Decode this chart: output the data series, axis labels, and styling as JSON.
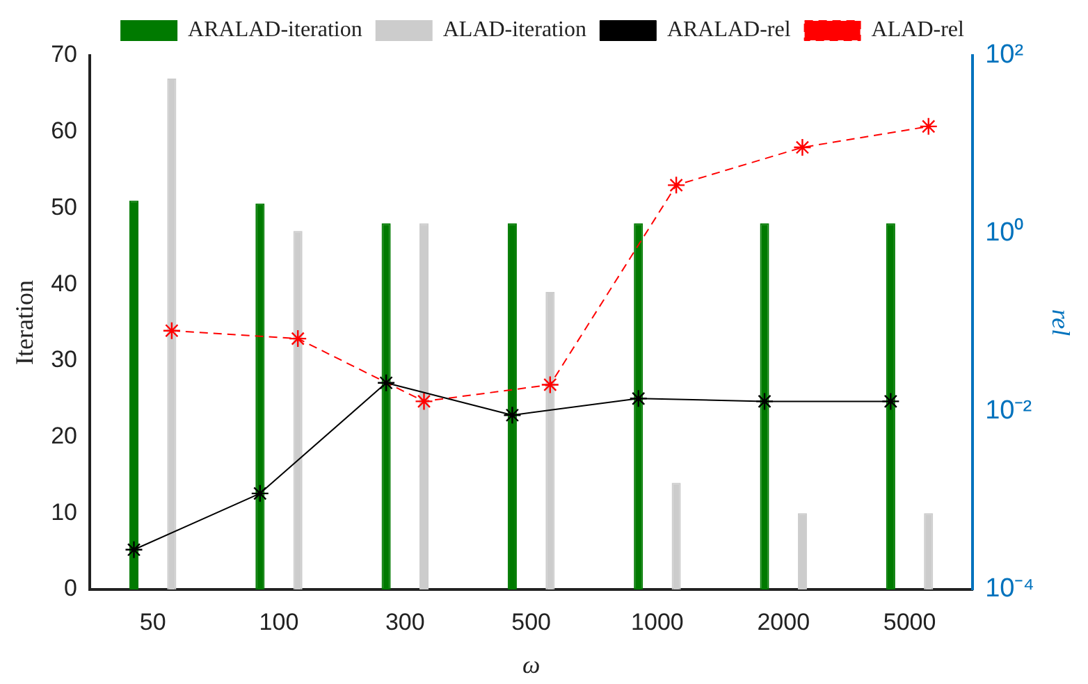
{
  "chart_data": {
    "type": "bar",
    "xlabel": "ω",
    "ylabel": "Iteration",
    "y2label": "rel",
    "categories": [
      "50",
      "100",
      "300",
      "500",
      "1000",
      "2000",
      "5000"
    ],
    "series": [
      {
        "name": "ARALAD-iteration",
        "color": "#007a00",
        "values": [
          51,
          50.6,
          48,
          48,
          48,
          48,
          48
        ]
      },
      {
        "name": "ALAD-iteration",
        "color": "#cccccc",
        "values": [
          67,
          47,
          48,
          39,
          14,
          10,
          10
        ]
      },
      {
        "name": "ARALAD-rel",
        "type": "line",
        "axis": "y2",
        "color": "#000000",
        "marker": "cross",
        "line_style": "solid",
        "values": [
          0.00028,
          0.0012,
          0.021,
          0.0091,
          0.014,
          0.013,
          0.013
        ]
      },
      {
        "name": "ALAD-rel",
        "type": "line",
        "axis": "y2",
        "color": "#ff0000",
        "marker": "cross",
        "line_style": "dashed",
        "values": [
          0.081,
          0.066,
          0.013,
          0.02,
          3.5,
          9.3,
          16
        ]
      }
    ],
    "ylim": [
      0,
      70
    ],
    "yticks": [
      0,
      10,
      20,
      30,
      40,
      50,
      60,
      70
    ],
    "y2lim": [
      0.0001,
      100
    ],
    "y2ticks": [
      {
        "value": 0.0001,
        "label": "10⁻⁴"
      },
      {
        "value": 0.01,
        "label": "10⁻²"
      },
      {
        "value": 1,
        "label": "10⁰"
      },
      {
        "value": 100,
        "label": "10²"
      }
    ],
    "log": "y2",
    "grid": false,
    "legend": "top"
  }
}
